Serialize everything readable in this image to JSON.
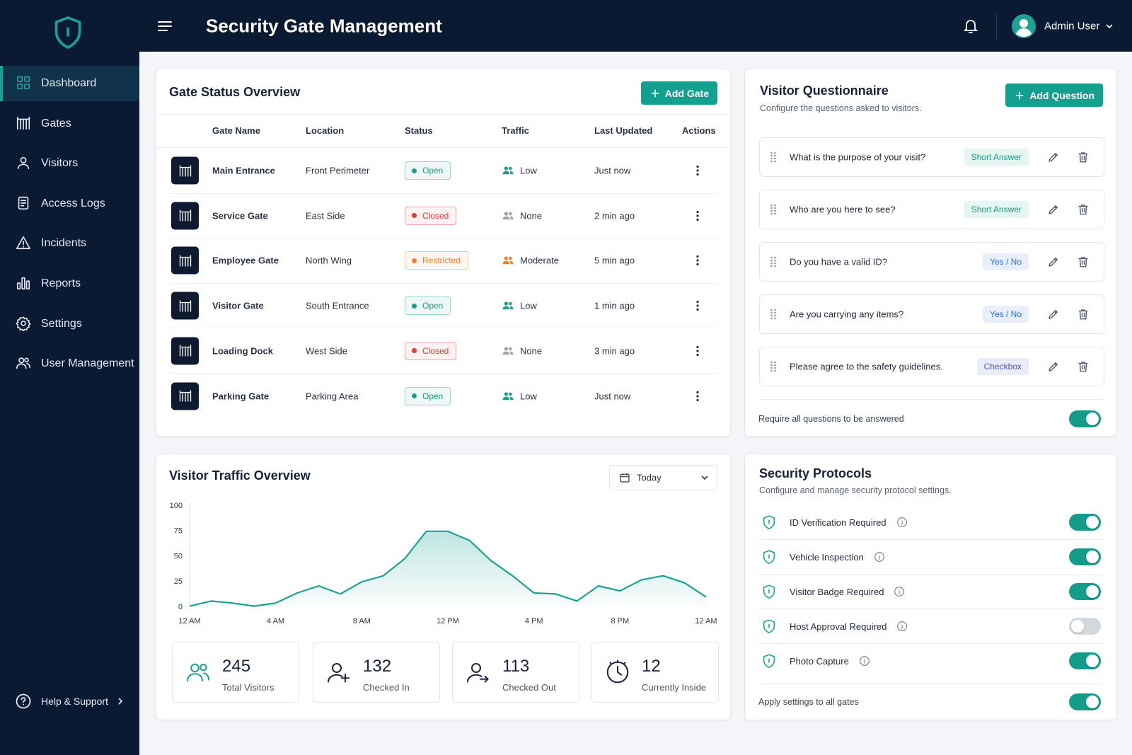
{
  "sidebar": {
    "nav": [
      "Dashboard",
      "Gates",
      "Visitors",
      "Access Logs",
      "Incidents",
      "Reports",
      "Settings",
      "User Management"
    ],
    "help": "Help & Support"
  },
  "header": {
    "title": "Security Gate Management",
    "user": "Admin User"
  },
  "gates": {
    "title": "Gate Status Overview",
    "add_button": "Add Gate",
    "columns": [
      "Gate Name",
      "Location",
      "Status",
      "Traffic",
      "Last Updated",
      "Actions"
    ],
    "rows": [
      {
        "name": "Main Entrance",
        "location": "Front Perimeter",
        "status": "Open",
        "status_color": "#16a085",
        "traffic": "Low",
        "traffic_color": "#16a085",
        "updated": "Just now"
      },
      {
        "name": "Service Gate",
        "location": "East Side",
        "status": "Closed",
        "status_color": "#e53935",
        "traffic": "None",
        "traffic_color": "#9aa3ae",
        "updated": "2 min ago"
      },
      {
        "name": "Employee Gate",
        "location": "North Wing",
        "status": "Restricted",
        "status_color": "#f07f2d",
        "traffic": "Moderate",
        "traffic_color": "#f07f2d",
        "updated": "5 min ago"
      },
      {
        "name": "Visitor Gate",
        "location": "South Entrance",
        "status": "Open",
        "status_color": "#16a085",
        "traffic": "Low",
        "traffic_color": "#16a085",
        "updated": "1 min ago"
      },
      {
        "name": "Loading Dock",
        "location": "West Side",
        "status": "Closed",
        "status_color": "#e53935",
        "traffic": "None",
        "traffic_color": "#9aa3ae",
        "updated": "3 min ago"
      },
      {
        "name": "Parking Gate",
        "location": "Parking Area",
        "status": "Open",
        "status_color": "#16a085",
        "traffic": "Low",
        "traffic_color": "#16a085",
        "updated": "Just now"
      }
    ]
  },
  "questionnaire": {
    "title": "Visitor Questionnaire",
    "subtitle": "Configure the questions asked to visitors.",
    "add_button": "Add Question",
    "questions": [
      {
        "text": "What is the purpose of your visit?",
        "type": "Short Answer",
        "tag_color": "#16a085"
      },
      {
        "text": "Who are you here to see?",
        "type": "Short Answer",
        "tag_color": "#16a085"
      },
      {
        "text": "Do you have a valid ID?",
        "type": "Yes / No",
        "tag_color": "#2f6fd6"
      },
      {
        "text": "Are you carrying any items?",
        "type": "Yes / No",
        "tag_color": "#2f6fd6"
      },
      {
        "text": "Please agree to the safety guidelines.",
        "type": "Checkbox",
        "tag_color": "#4b55c9"
      }
    ],
    "require_all": {
      "label": "Require all questions to be answered",
      "enabled": true
    }
  },
  "traffic": {
    "title": "Visitor Traffic Overview",
    "range": "Today",
    "stats": [
      {
        "value": 245,
        "label": "Total Visitors"
      },
      {
        "value": 132,
        "label": "Checked In"
      },
      {
        "value": 113,
        "label": "Checked Out"
      },
      {
        "value": 12,
        "label": "Currently Inside"
      }
    ]
  },
  "chart_data": {
    "type": "line",
    "color": "#1aa394",
    "grid": false,
    "x": [
      0,
      1,
      2,
      3,
      4,
      5,
      6,
      7,
      8,
      9,
      10,
      11,
      12,
      13,
      14,
      15,
      16,
      17,
      18,
      19,
      20,
      21,
      22,
      23,
      24
    ],
    "values": [
      1,
      6,
      4,
      1,
      4,
      14,
      21,
      13,
      25,
      31,
      48,
      75,
      75,
      66,
      46,
      31,
      14,
      13,
      6,
      21,
      16,
      27,
      31,
      24,
      10
    ],
    "xlim": [
      0,
      24
    ],
    "xticks": [
      {
        "value": 0,
        "label": "12 AM"
      },
      {
        "value": 4,
        "label": "4 AM"
      },
      {
        "value": 8,
        "label": "8 AM"
      },
      {
        "value": 12,
        "label": "12 PM"
      },
      {
        "value": 16,
        "label": "4 PM"
      },
      {
        "value": 20,
        "label": "8 PM"
      },
      {
        "value": 24,
        "label": "12 AM"
      }
    ],
    "ylim": [
      0,
      100
    ],
    "yticks": [
      0,
      25,
      50,
      75,
      100
    ]
  },
  "protocols": {
    "title": "Security Protocols",
    "subtitle": "Configure and manage security protocol settings.",
    "items": [
      {
        "label": "ID Verification Required",
        "enabled": true
      },
      {
        "label": "Vehicle Inspection",
        "enabled": true
      },
      {
        "label": "Visitor Badge Required",
        "enabled": true
      },
      {
        "label": "Host Approval Required",
        "enabled": false
      },
      {
        "label": "Photo Capture",
        "enabled": true
      }
    ],
    "apply_all": {
      "label": "Apply settings to all gates",
      "enabled": true
    }
  }
}
